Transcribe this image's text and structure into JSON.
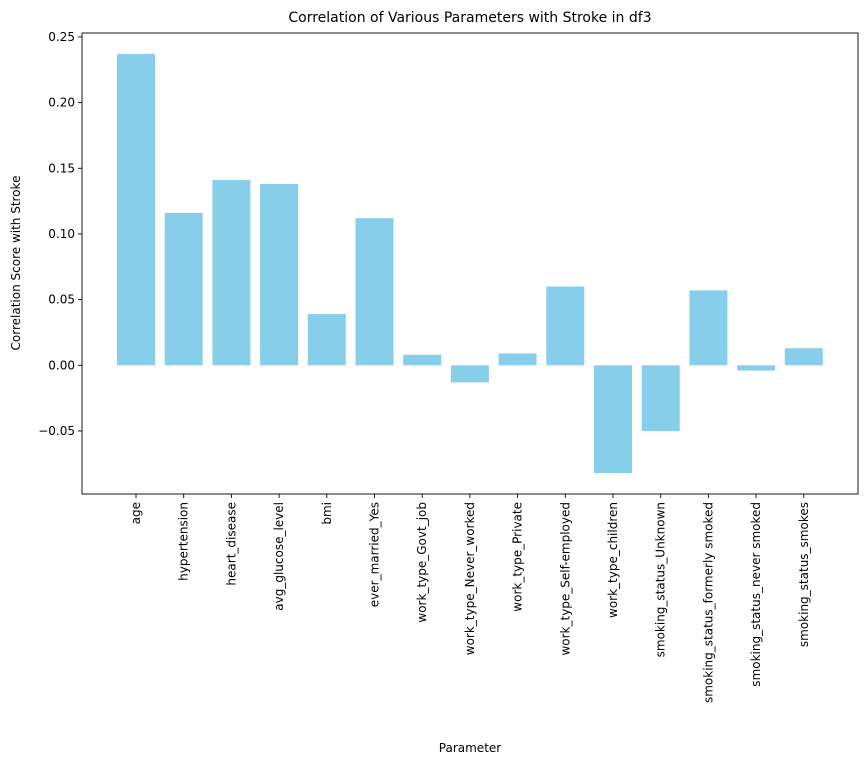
{
  "chart_data": {
    "type": "bar",
    "title": "Correlation of Various Parameters with Stroke in df3",
    "xlabel": "Parameter",
    "ylabel": "Correlation Score with Stroke",
    "categories": [
      "age",
      "hypertension",
      "heart_disease",
      "avg_glucose_level",
      "bmi",
      "ever_married_Yes",
      "work_type_Govt_job",
      "work_type_Never_worked",
      "work_type_Private",
      "work_type_Self-employed",
      "work_type_children",
      "smoking_status_Unknown",
      "smoking_status_formerly smoked",
      "smoking_status_never smoked",
      "smoking_status_smokes"
    ],
    "values": [
      0.237,
      0.116,
      0.141,
      0.138,
      0.039,
      0.112,
      0.008,
      -0.013,
      0.009,
      0.06,
      -0.082,
      -0.05,
      0.057,
      -0.004,
      0.013
    ],
    "ylim": [
      -0.098,
      0.253
    ],
    "yticks": [
      -0.05,
      0.0,
      0.05,
      0.1,
      0.15,
      0.2,
      0.25
    ],
    "ytick_labels": [
      "−0.05",
      "0.00",
      "0.05",
      "0.10",
      "0.15",
      "0.20",
      "0.25"
    ],
    "bar_color": "#87ceeb",
    "grid": false,
    "legend": "none"
  }
}
